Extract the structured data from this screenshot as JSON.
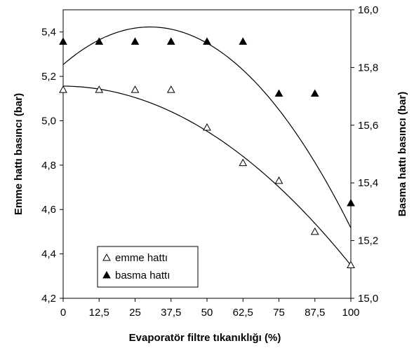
{
  "chart_data": {
    "type": "scatter",
    "xlabel": "Evaporatör filtre tıkanıklığı (%)",
    "ylabel_left": "Emme hattı basıncı (bar)",
    "ylabel_right": "Basma hattı basıncı (bar)",
    "x": [
      0,
      12.5,
      25,
      37.5,
      50,
      62.5,
      75,
      87.5,
      100
    ],
    "x_tick_labels": [
      "0",
      "12,5",
      "25",
      "37,5",
      "50",
      "62,5",
      "75",
      "87,5",
      "100"
    ],
    "xlim": [
      0,
      100
    ],
    "ylim_left": [
      4.2,
      5.5
    ],
    "ylim_right": [
      15.0,
      16.0
    ],
    "y_left_ticks": [
      4.2,
      4.4,
      4.6,
      4.8,
      5.0,
      5.2,
      5.4
    ],
    "y_left_tick_labels": [
      "4,2",
      "4,4",
      "4,6",
      "4,8",
      "5,0",
      "5,2",
      "5,4"
    ],
    "y_right_ticks": [
      15.0,
      15.2,
      15.4,
      15.6,
      15.8,
      16.0
    ],
    "y_right_tick_labels": [
      "15,0",
      "15,2",
      "15,4",
      "15,6",
      "15,8",
      "16,0"
    ],
    "grid": false,
    "legend_position": "bottom-left",
    "series": [
      {
        "name": "emme hattı",
        "axis": "left",
        "marker": "open-triangle",
        "values": [
          5.14,
          5.14,
          5.14,
          5.14,
          4.97,
          4.81,
          4.73,
          4.5,
          4.35
        ],
        "trend": {
          "type": "polynomial",
          "order": 2,
          "coefficients": [
            5.156,
            -5e-05,
            -8.02e-05
          ]
        }
      },
      {
        "name": "basma hattı",
        "axis": "right",
        "marker": "filled-triangle",
        "values": [
          15.89,
          15.89,
          15.89,
          15.89,
          15.89,
          15.89,
          15.71,
          15.71,
          15.33
        ],
        "trend": {
          "type": "polynomial",
          "order": 2,
          "coefficients": [
            15.81,
            0.00864,
            -0.000143
          ]
        }
      }
    ]
  }
}
